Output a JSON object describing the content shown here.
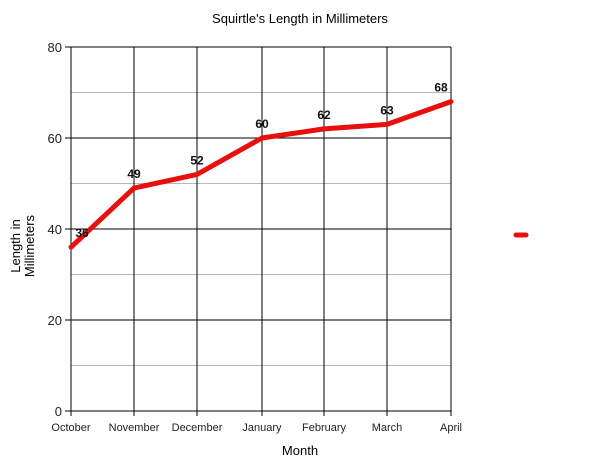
{
  "chart_data": {
    "type": "line",
    "title": "Squirtle's Length in Millimeters",
    "xlabel": "Month",
    "ylabel": "Length in Millimeters",
    "ylabel_lines": [
      "Length in",
      "Millimeters"
    ],
    "categories": [
      "October",
      "November",
      "December",
      "January",
      "February",
      "March",
      "April"
    ],
    "series": [
      {
        "name": "",
        "color": "#e8100c",
        "values": [
          36,
          49,
          52,
          60,
          62,
          63,
          68
        ],
        "data_labels": true
      }
    ],
    "ylim": [
      0,
      80
    ],
    "yticks": [
      0,
      20,
      40,
      60,
      80
    ],
    "minor_gridlines": [
      10,
      30,
      50,
      70
    ],
    "grid": true,
    "legend": {
      "position": "right",
      "entries": [
        ""
      ]
    }
  }
}
